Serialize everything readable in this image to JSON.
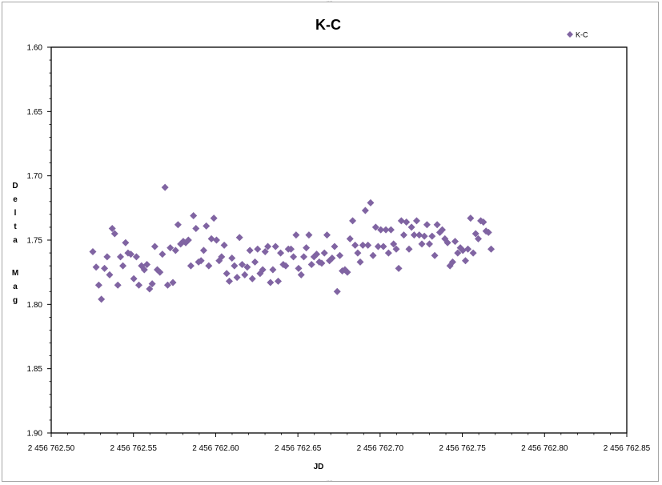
{
  "chart_data": {
    "type": "scatter",
    "title": "K-C",
    "xlabel": "JD",
    "ylabel": "Delta Mag",
    "xlim": [
      2456762.5,
      2456762.85
    ],
    "ylim": [
      1.6,
      1.9
    ],
    "y_inverted": true,
    "x_ticks": [
      "2 456 762.50",
      "2 456 762.55",
      "2 456 762.60",
      "2 456 762.65",
      "2 456 762.70",
      "2 456 762.75",
      "2 456 762.80",
      "2 456 762.85"
    ],
    "y_ticks": [
      "1.60",
      "1.65",
      "1.70",
      "1.75",
      "1.80",
      "1.85",
      "1.90"
    ],
    "grid": false,
    "legend_position": "top-right",
    "marker": "diamond",
    "series": [
      {
        "name": "K-C",
        "color": "#8064a2",
        "points": [
          [
            2456762.5253,
            1.759
          ],
          [
            2456762.5273,
            1.771
          ],
          [
            2456762.5289,
            1.785
          ],
          [
            2456762.5305,
            1.796
          ],
          [
            2456762.5324,
            1.772
          ],
          [
            2456762.534,
            1.763
          ],
          [
            2456762.5355,
            1.777
          ],
          [
            2456762.5371,
            1.741
          ],
          [
            2456762.5386,
            1.745
          ],
          [
            2456762.5405,
            1.785
          ],
          [
            2456762.5421,
            1.763
          ],
          [
            2456762.5436,
            1.77
          ],
          [
            2456762.5452,
            1.752
          ],
          [
            2456762.5467,
            1.76
          ],
          [
            2456762.5484,
            1.761
          ],
          [
            2456762.5502,
            1.78
          ],
          [
            2456762.5518,
            1.763
          ],
          [
            2456762.5533,
            1.785
          ],
          [
            2456762.5549,
            1.77
          ],
          [
            2456762.5566,
            1.773
          ],
          [
            2456762.5582,
            1.769
          ],
          [
            2456762.5598,
            1.788
          ],
          [
            2456762.5614,
            1.784
          ],
          [
            2456762.563,
            1.755
          ],
          [
            2456762.5645,
            1.773
          ],
          [
            2456762.5661,
            1.775
          ],
          [
            2456762.5676,
            1.761
          ],
          [
            2456762.5692,
            1.709
          ],
          [
            2456762.5708,
            1.785
          ],
          [
            2456762.5724,
            1.756
          ],
          [
            2456762.574,
            1.783
          ],
          [
            2456762.5756,
            1.758
          ],
          [
            2456762.5771,
            1.738
          ],
          [
            2456762.5787,
            1.753
          ],
          [
            2456762.5803,
            1.751
          ],
          [
            2456762.5818,
            1.752
          ],
          [
            2456762.5834,
            1.75
          ],
          [
            2456762.5849,
            1.77
          ],
          [
            2456762.5865,
            1.731
          ],
          [
            2456762.588,
            1.741
          ],
          [
            2456762.5896,
            1.767
          ],
          [
            2456762.5911,
            1.766
          ],
          [
            2456762.5927,
            1.758
          ],
          [
            2456762.5943,
            1.739
          ],
          [
            2456762.5958,
            1.77
          ],
          [
            2456762.5974,
            1.749
          ],
          [
            2456762.5989,
            1.733
          ],
          [
            2456762.6005,
            1.75
          ],
          [
            2456762.6021,
            1.766
          ],
          [
            2456762.6036,
            1.763
          ],
          [
            2456762.6052,
            1.754
          ],
          [
            2456762.6067,
            1.776
          ],
          [
            2456762.6083,
            1.782
          ],
          [
            2456762.6099,
            1.764
          ],
          [
            2456762.6114,
            1.77
          ],
          [
            2456762.613,
            1.779
          ],
          [
            2456762.6145,
            1.748
          ],
          [
            2456762.6161,
            1.769
          ],
          [
            2456762.6177,
            1.777
          ],
          [
            2456762.6192,
            1.771
          ],
          [
            2456762.6208,
            1.758
          ],
          [
            2456762.6223,
            1.78
          ],
          [
            2456762.6239,
            1.767
          ],
          [
            2456762.6255,
            1.757
          ],
          [
            2456762.627,
            1.776
          ],
          [
            2456762.6286,
            1.773
          ],
          [
            2456762.6301,
            1.759
          ],
          [
            2456762.6317,
            1.755
          ],
          [
            2456762.6333,
            1.783
          ],
          [
            2456762.6348,
            1.773
          ],
          [
            2456762.6364,
            1.755
          ],
          [
            2456762.638,
            1.782
          ],
          [
            2456762.6395,
            1.76
          ],
          [
            2456762.6411,
            1.769
          ],
          [
            2456762.6426,
            1.77
          ],
          [
            2456762.6442,
            1.757
          ],
          [
            2456762.6458,
            1.757
          ],
          [
            2456762.6473,
            1.763
          ],
          [
            2456762.6489,
            1.746
          ],
          [
            2456762.6504,
            1.772
          ],
          [
            2456762.652,
            1.777
          ],
          [
            2456762.6536,
            1.763
          ],
          [
            2456762.6551,
            1.756
          ],
          [
            2456762.6567,
            1.746
          ],
          [
            2456762.6583,
            1.769
          ],
          [
            2456762.6598,
            1.763
          ],
          [
            2456762.6614,
            1.761
          ],
          [
            2456762.663,
            1.767
          ],
          [
            2456762.6645,
            1.768
          ],
          [
            2456762.6661,
            1.76
          ],
          [
            2456762.6677,
            1.746
          ],
          [
            2456762.6692,
            1.766
          ],
          [
            2456762.6708,
            1.764
          ],
          [
            2456762.6723,
            1.755
          ],
          [
            2456762.6739,
            1.79
          ],
          [
            2456762.6755,
            1.762
          ],
          [
            2456762.677,
            1.774
          ],
          [
            2456762.6786,
            1.773
          ],
          [
            2456762.6801,
            1.775
          ],
          [
            2456762.6817,
            1.749
          ],
          [
            2456762.6833,
            1.735
          ],
          [
            2456762.6848,
            1.754
          ],
          [
            2456762.6864,
            1.76
          ],
          [
            2456762.6879,
            1.767
          ],
          [
            2456762.6895,
            1.754
          ],
          [
            2456762.691,
            1.727
          ],
          [
            2456762.6926,
            1.754
          ],
          [
            2456762.6942,
            1.721
          ],
          [
            2456762.6957,
            1.762
          ],
          [
            2456762.6973,
            1.74
          ],
          [
            2456762.6988,
            1.755
          ],
          [
            2456762.7004,
            1.742
          ],
          [
            2456762.702,
            1.755
          ],
          [
            2456762.7035,
            1.742
          ],
          [
            2456762.7051,
            1.76
          ],
          [
            2456762.7066,
            1.742
          ],
          [
            2456762.7082,
            1.753
          ],
          [
            2456762.7098,
            1.757
          ],
          [
            2456762.7113,
            1.772
          ],
          [
            2456762.7129,
            1.735
          ],
          [
            2456762.7144,
            1.746
          ],
          [
            2456762.716,
            1.736
          ],
          [
            2456762.7176,
            1.757
          ],
          [
            2456762.7191,
            1.74
          ],
          [
            2456762.7207,
            1.746
          ],
          [
            2456762.7222,
            1.735
          ],
          [
            2456762.7238,
            1.746
          ],
          [
            2456762.7254,
            1.753
          ],
          [
            2456762.7269,
            1.747
          ],
          [
            2456762.7285,
            1.738
          ],
          [
            2456762.73,
            1.753
          ],
          [
            2456762.7316,
            1.747
          ],
          [
            2456762.7332,
            1.762
          ],
          [
            2456762.7347,
            1.738
          ],
          [
            2456762.7363,
            1.744
          ],
          [
            2456762.7378,
            1.742
          ],
          [
            2456762.7394,
            1.749
          ],
          [
            2456762.741,
            1.752
          ],
          [
            2456762.7425,
            1.77
          ],
          [
            2456762.7441,
            1.767
          ],
          [
            2456762.7456,
            1.751
          ],
          [
            2456762.7472,
            1.76
          ],
          [
            2456762.7488,
            1.756
          ],
          [
            2456762.7503,
            1.758
          ],
          [
            2456762.7519,
            1.766
          ],
          [
            2456762.7534,
            1.757
          ],
          [
            2456762.755,
            1.733
          ],
          [
            2456762.7566,
            1.76
          ],
          [
            2456762.7581,
            1.745
          ],
          [
            2456762.7597,
            1.749
          ],
          [
            2456762.7612,
            1.735
          ],
          [
            2456762.7628,
            1.736
          ],
          [
            2456762.7644,
            1.743
          ],
          [
            2456762.7659,
            1.744
          ],
          [
            2456762.7675,
            1.757
          ]
        ]
      }
    ]
  }
}
